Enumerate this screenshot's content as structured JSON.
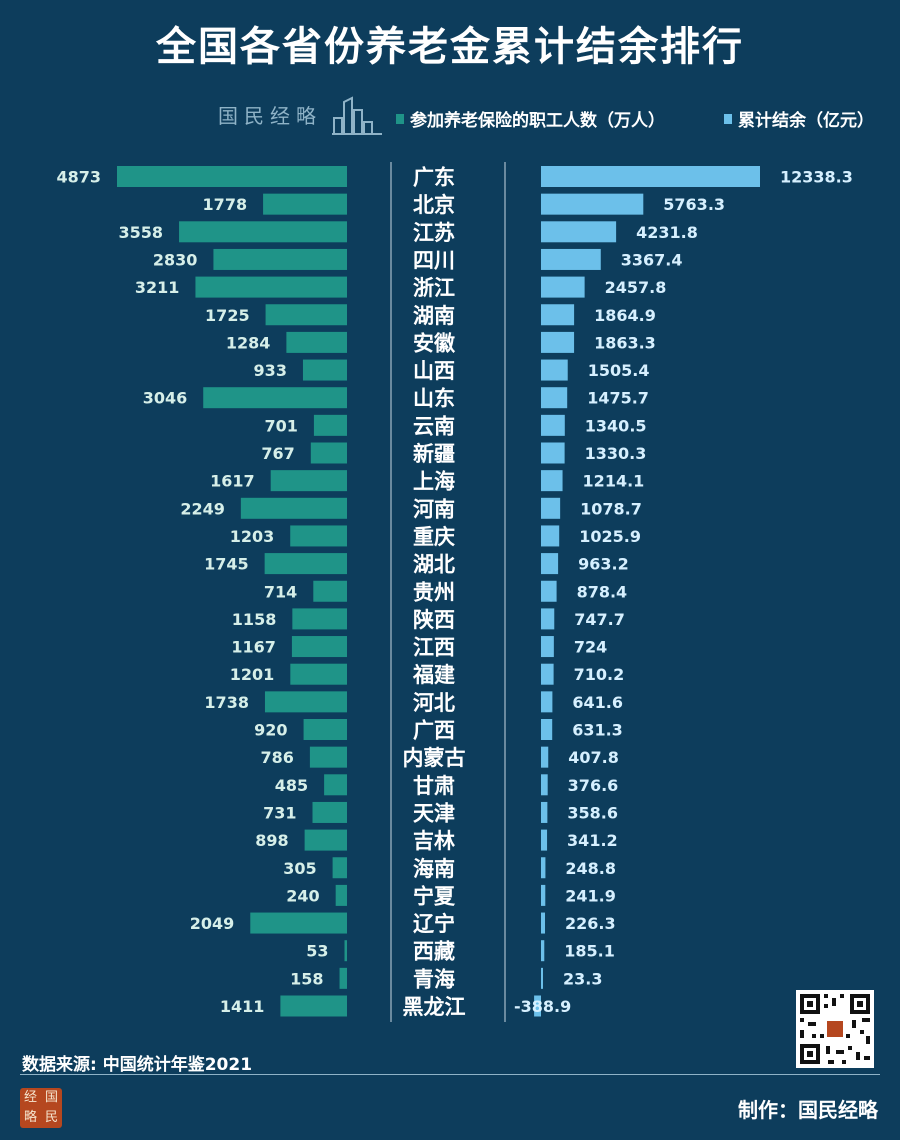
{
  "title": "全国各省份养老金累计结余排行",
  "brand_mark": "国民经略",
  "legend": {
    "left_label": "参加养老保险的职工人数（万人）",
    "right_label": "累计结余（亿元）",
    "left_color": "#1f9488",
    "right_color": "#6cc0ea"
  },
  "colors": {
    "background": "#0d3d5c",
    "left_bar": "#1f9488",
    "right_bar": "#6cc0ea",
    "left_label": "#d6efe9",
    "right_label": "#d6f0ff"
  },
  "chart_data": {
    "type": "bar",
    "categories": [
      "广东",
      "北京",
      "江苏",
      "四川",
      "浙江",
      "湖南",
      "安徽",
      "山西",
      "山东",
      "云南",
      "新疆",
      "上海",
      "河南",
      "重庆",
      "湖北",
      "贵州",
      "陕西",
      "江西",
      "福建",
      "河北",
      "广西",
      "内蒙古",
      "甘肃",
      "天津",
      "吉林",
      "海南",
      "宁夏",
      "辽宁",
      "西藏",
      "青海",
      "黑龙江"
    ],
    "series": [
      {
        "name": "参加养老保险的职工人数（万人）",
        "values": [
          4873,
          1778,
          3558,
          2830,
          3211,
          1725,
          1284,
          933,
          3046,
          701,
          767,
          1617,
          2249,
          1203,
          1745,
          714,
          1158,
          1167,
          1201,
          1738,
          920,
          786,
          485,
          731,
          898,
          305,
          240,
          2049,
          53,
          158,
          1411
        ]
      },
      {
        "name": "累计结余（亿元）",
        "values": [
          12338.3,
          5763.3,
          4231.8,
          3367.4,
          2457.8,
          1864.9,
          1863.3,
          1505.4,
          1475.7,
          1340.5,
          1330.3,
          1214.1,
          1078.7,
          1025.9,
          963.2,
          878.4,
          747.7,
          724,
          710.2,
          641.6,
          631.3,
          407.8,
          376.6,
          358.6,
          341.2,
          248.8,
          241.9,
          226.3,
          185.1,
          23.3,
          -388.9
        ],
        "labels": [
          "12338.3",
          "5763.3",
          "4231.8",
          "3367.4",
          "2457.8",
          "1864.9",
          "1863.3",
          "1505.4",
          "1475.7",
          "1340.5",
          "1330.3",
          "1214.1",
          "1078.7",
          "1025.9",
          "963.2",
          "878.4",
          "747.7",
          "724",
          "710.2",
          "641.6",
          "631.3",
          "407.8",
          "376.6",
          "358.6",
          "341.2",
          "248.8",
          "241.9",
          "226.3",
          "185.1",
          "23.3",
          "-388.9"
        ]
      }
    ]
  },
  "footer": {
    "source": "数据来源: 中国统计年鉴2021",
    "maker": "制作：国民经略",
    "seal_chars": [
      "经",
      "国",
      "略",
      "民"
    ]
  }
}
